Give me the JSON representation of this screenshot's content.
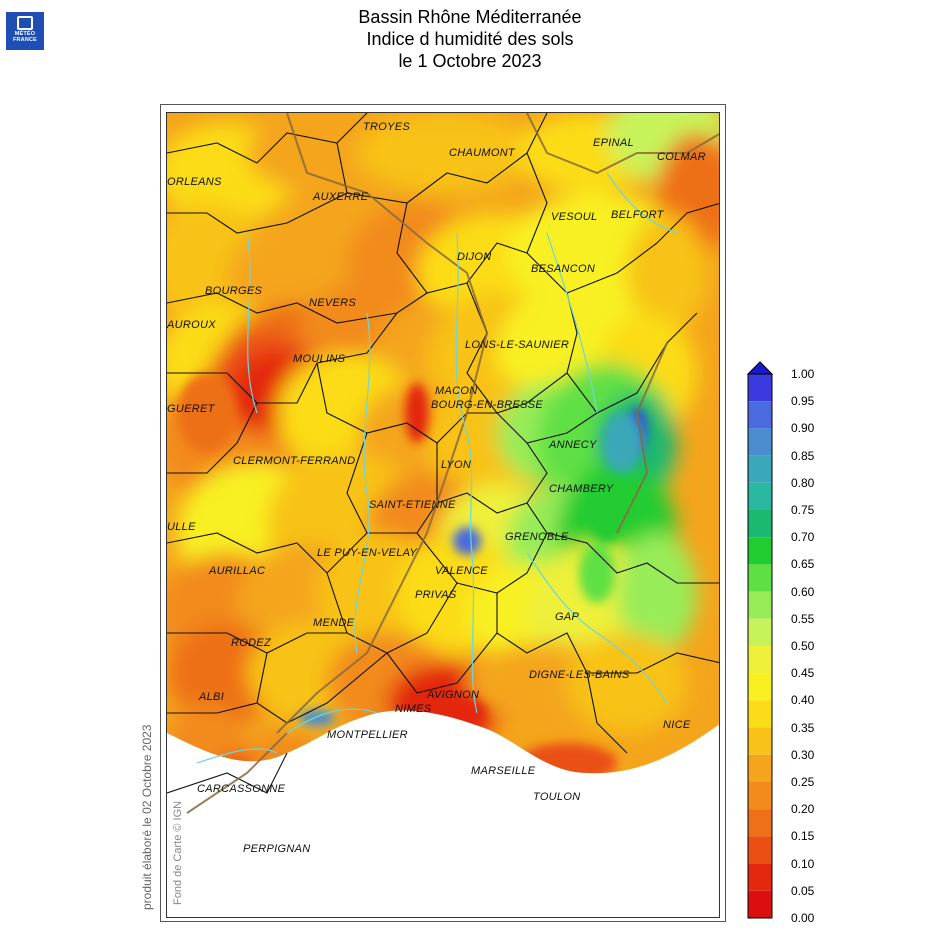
{
  "logo": {
    "line1": "MÉTÉO",
    "line2": "FRANCE",
    "brand_color": "#1f4fb4"
  },
  "title": {
    "line1": "Bassin Rhône Méditerranée",
    "line2": "Indice d humidité des sols",
    "line3": "le 1 Octobre 2023"
  },
  "cities": [
    {
      "name": "TROYES"
    },
    {
      "name": "CHAUMONT"
    },
    {
      "name": "EPINAL"
    },
    {
      "name": "COLMAR"
    },
    {
      "name": "ORLEANS"
    },
    {
      "name": "AUXERRE"
    },
    {
      "name": "VESOUL"
    },
    {
      "name": "BELFORT"
    },
    {
      "name": "DIJON"
    },
    {
      "name": "BESANCON"
    },
    {
      "name": "BOURGES"
    },
    {
      "name": "NEVERS"
    },
    {
      "name": "AUROUX"
    },
    {
      "name": "LONS-LE-SAUNIER"
    },
    {
      "name": "MOULINS"
    },
    {
      "name": "MACON"
    },
    {
      "name": "BOURG-EN-BRESSE"
    },
    {
      "name": "GUERET"
    },
    {
      "name": "ANNECY"
    },
    {
      "name": "CLERMONT-FERRAND"
    },
    {
      "name": "LYON"
    },
    {
      "name": "CHAMBERY"
    },
    {
      "name": "SAINT-ETIENNE"
    },
    {
      "name": "ULLE"
    },
    {
      "name": "GRENOBLE"
    },
    {
      "name": "LE PUY-EN-VELAY"
    },
    {
      "name": "AURILLAC"
    },
    {
      "name": "VALENCE"
    },
    {
      "name": "PRIVAS"
    },
    {
      "name": "GAP"
    },
    {
      "name": "MENDE"
    },
    {
      "name": "RODEZ"
    },
    {
      "name": "DIGNE-LES-BAINS"
    },
    {
      "name": "AVIGNON"
    },
    {
      "name": "ALBI"
    },
    {
      "name": "NIMES"
    },
    {
      "name": "NICE"
    },
    {
      "name": "MONTPELLIER"
    },
    {
      "name": "MARSEILLE"
    },
    {
      "name": "CARCASSONNE"
    },
    {
      "name": "TOULON"
    },
    {
      "name": "PERPIGNAN"
    }
  ],
  "legend": {
    "stops": [
      {
        "value": "1.00",
        "color": "#1a1acc"
      },
      {
        "value": "0.95",
        "color": "#3a3ae0"
      },
      {
        "value": "0.90",
        "color": "#4a6ae0"
      },
      {
        "value": "0.85",
        "color": "#4a8ed0"
      },
      {
        "value": "0.80",
        "color": "#3aa8b8"
      },
      {
        "value": "0.75",
        "color": "#2ab8a0"
      },
      {
        "value": "0.70",
        "color": "#1ab870"
      },
      {
        "value": "0.65",
        "color": "#20cc30"
      },
      {
        "value": "0.60",
        "color": "#5ee045"
      },
      {
        "value": "0.55",
        "color": "#98ec58"
      },
      {
        "value": "0.50",
        "color": "#c8f25a"
      },
      {
        "value": "0.45",
        "color": "#eef03a"
      },
      {
        "value": "0.40",
        "color": "#f8f020"
      },
      {
        "value": "0.35",
        "color": "#fbdc18"
      },
      {
        "value": "0.30",
        "color": "#f8c218"
      },
      {
        "value": "0.25",
        "color": "#f4a51c"
      },
      {
        "value": "0.20",
        "color": "#f28a1c"
      },
      {
        "value": "0.15",
        "color": "#ee7018"
      },
      {
        "value": "0.10",
        "color": "#ea4f14"
      },
      {
        "value": "0.05",
        "color": "#e42810"
      },
      {
        "value": "0.00",
        "color": "#dd0e0e"
      }
    ]
  },
  "produced": "produit élaboré le 02 Octobre 2023",
  "credit": "Fond de Carte © IGN"
}
